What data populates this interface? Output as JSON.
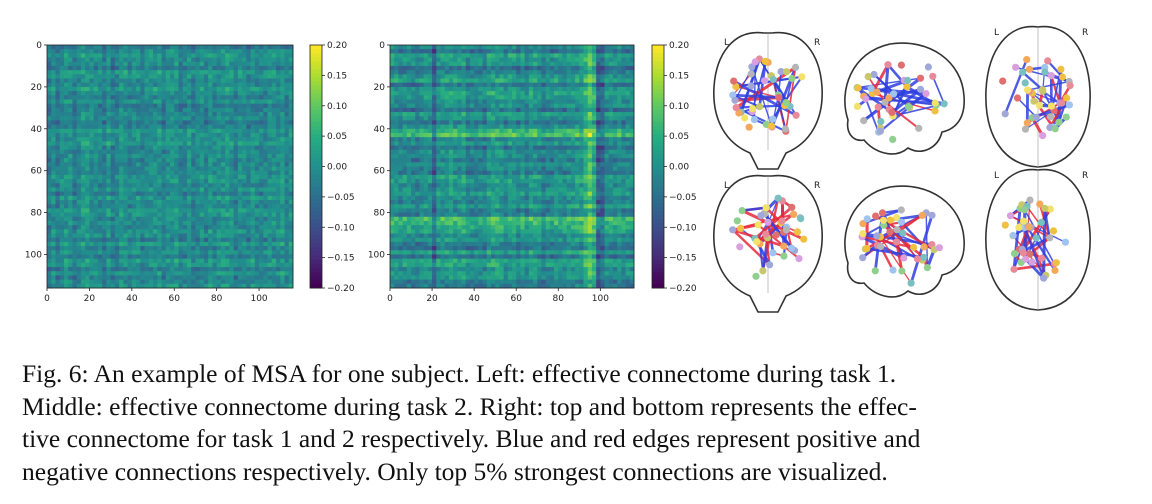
{
  "figure": {
    "heatmaps": [
      {
        "id": "task1",
        "x_ticks": [
          "0",
          "20",
          "40",
          "60",
          "80",
          "100"
        ],
        "y_ticks": [
          "0",
          "20",
          "40",
          "60",
          "80",
          "100"
        ],
        "x_range": [
          0,
          116
        ],
        "y_range": [
          0,
          116
        ],
        "colorbar_ticks": [
          "0.20",
          "0.15",
          "0.10",
          "0.05",
          "0.00",
          "−0.05",
          "−0.10",
          "−0.15",
          "−0.20"
        ],
        "colorbar_range": [
          -0.2,
          0.2
        ],
        "colormap": "viridis",
        "pattern": "task1"
      },
      {
        "id": "task2",
        "x_ticks": [
          "0",
          "20",
          "40",
          "60",
          "80",
          "100"
        ],
        "y_ticks": [
          "0",
          "20",
          "40",
          "60",
          "80",
          "100"
        ],
        "x_range": [
          0,
          116
        ],
        "y_range": [
          0,
          116
        ],
        "colorbar_ticks": [
          "0.20",
          "0.15",
          "0.10",
          "0.05",
          "0.00",
          "−0.05",
          "−0.10",
          "−0.15",
          "−0.20"
        ],
        "colorbar_range": [
          -0.2,
          0.2
        ],
        "colormap": "viridis",
        "pattern": "task2"
      }
    ],
    "brain_views": {
      "top_row_label": "task 1",
      "bottom_row_label": "task 2",
      "coronal_labels": [
        "L",
        "R"
      ],
      "axial_labels": [
        "L",
        "R"
      ],
      "edge_colors": {
        "positive": "#2f3fe0",
        "negative": "#e8283a"
      }
    }
  },
  "caption": {
    "lines": [
      "Fig. 6: An example of MSA for one subject. Left: effective connectome during task 1.",
      "Middle: effective connectome during task 2. Right: top and bottom represents the effec-",
      "tive connectome for task 1 and 2 respectively. Blue and red edges represent positive and",
      "negative connections respectively. Only top 5% strongest connections are visualized."
    ]
  }
}
